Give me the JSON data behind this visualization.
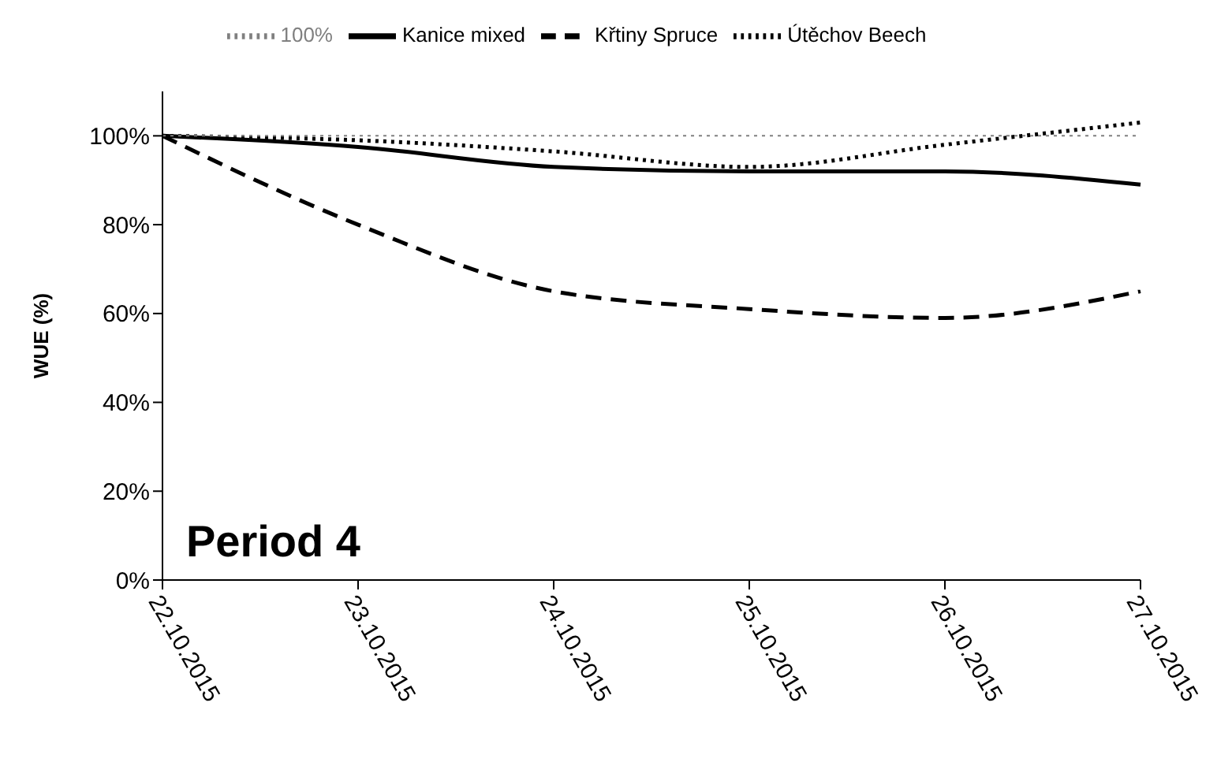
{
  "chart_data": {
    "type": "line",
    "ylabel": "WUE (%)",
    "annotations": [
      "Period 4"
    ],
    "categories": [
      "22.10.2015",
      "23.10.2015",
      "24.10.2015",
      "25.10.2015",
      "26.10.2015",
      "27.10.2015"
    ],
    "series": [
      {
        "name": "Křtiny Spruce",
        "color": "#000000",
        "line_style": "dashed",
        "values": [
          100,
          80,
          65,
          61,
          59,
          65
        ]
      },
      {
        "name": "Útěchov Beech",
        "color": "#000000",
        "line_style": "dotted",
        "values": [
          100,
          99,
          96.5,
          93,
          98,
          103
        ]
      },
      {
        "name": "Kanice mixed",
        "color": "#000000",
        "line_style": "solid",
        "values": [
          100,
          97.5,
          93,
          92,
          92,
          89
        ]
      },
      {
        "name": "100%",
        "color": "#808080",
        "line_style": "dotted",
        "values": [
          100,
          100,
          100,
          100,
          100,
          100
        ]
      }
    ],
    "ylim": [
      0,
      110
    ],
    "yticks": [
      {
        "value": 0,
        "label": "0%"
      },
      {
        "value": 20,
        "label": "20%"
      },
      {
        "value": 40,
        "label": "40%"
      },
      {
        "value": 60,
        "label": "60%"
      },
      {
        "value": 80,
        "label": "80%"
      },
      {
        "value": 100,
        "label": "100%"
      }
    ],
    "grid": false,
    "legend": "top",
    "marker": "none"
  }
}
